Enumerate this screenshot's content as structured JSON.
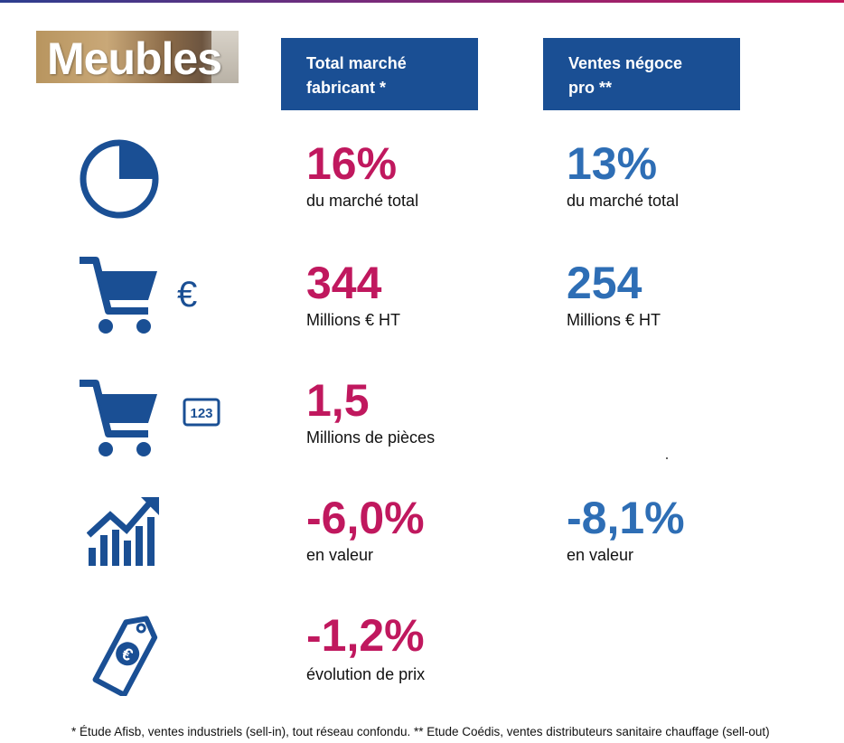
{
  "title": "Meubles",
  "colors": {
    "brand_blue": "#1a4f94",
    "metric_pink": "#c0185e",
    "metric_blue": "#2e6eb5",
    "icon_blue": "#1a4f94"
  },
  "headers": {
    "col1": [
      "Total marché",
      "fabricant *"
    ],
    "col2": [
      "Ventes négoce",
      "pro **"
    ]
  },
  "rows": [
    {
      "icon": "pie-chart-icon",
      "col1": {
        "value": "16%",
        "label": "du marché total"
      },
      "col2": {
        "value": "13%",
        "label": "du marché total"
      }
    },
    {
      "icon": "cart-euro-icon",
      "icon_symbol": "€",
      "col1": {
        "value": "344",
        "label": "Millions € HT"
      },
      "col2": {
        "value": "254",
        "label": "Millions € HT"
      }
    },
    {
      "icon": "cart-count-icon",
      "icon_symbol": "123",
      "col1": {
        "value": "1,5",
        "label": "Millions de pièces"
      }
    },
    {
      "icon": "growth-chart-icon",
      "col1": {
        "value": "-6,0%",
        "label": "en valeur"
      },
      "col2": {
        "value": "-8,1%",
        "label": "en valeur"
      }
    },
    {
      "icon": "price-tag-euro-icon",
      "icon_symbol": "€",
      "col1": {
        "value": "-1,2%",
        "label": "évolution de prix"
      }
    }
  ],
  "footnote": "* Étude Afisb, ventes industriels (sell-in), tout réseau confondu. ** Etude Coédis, ventes distributeurs sanitaire chauffage (sell-out)"
}
